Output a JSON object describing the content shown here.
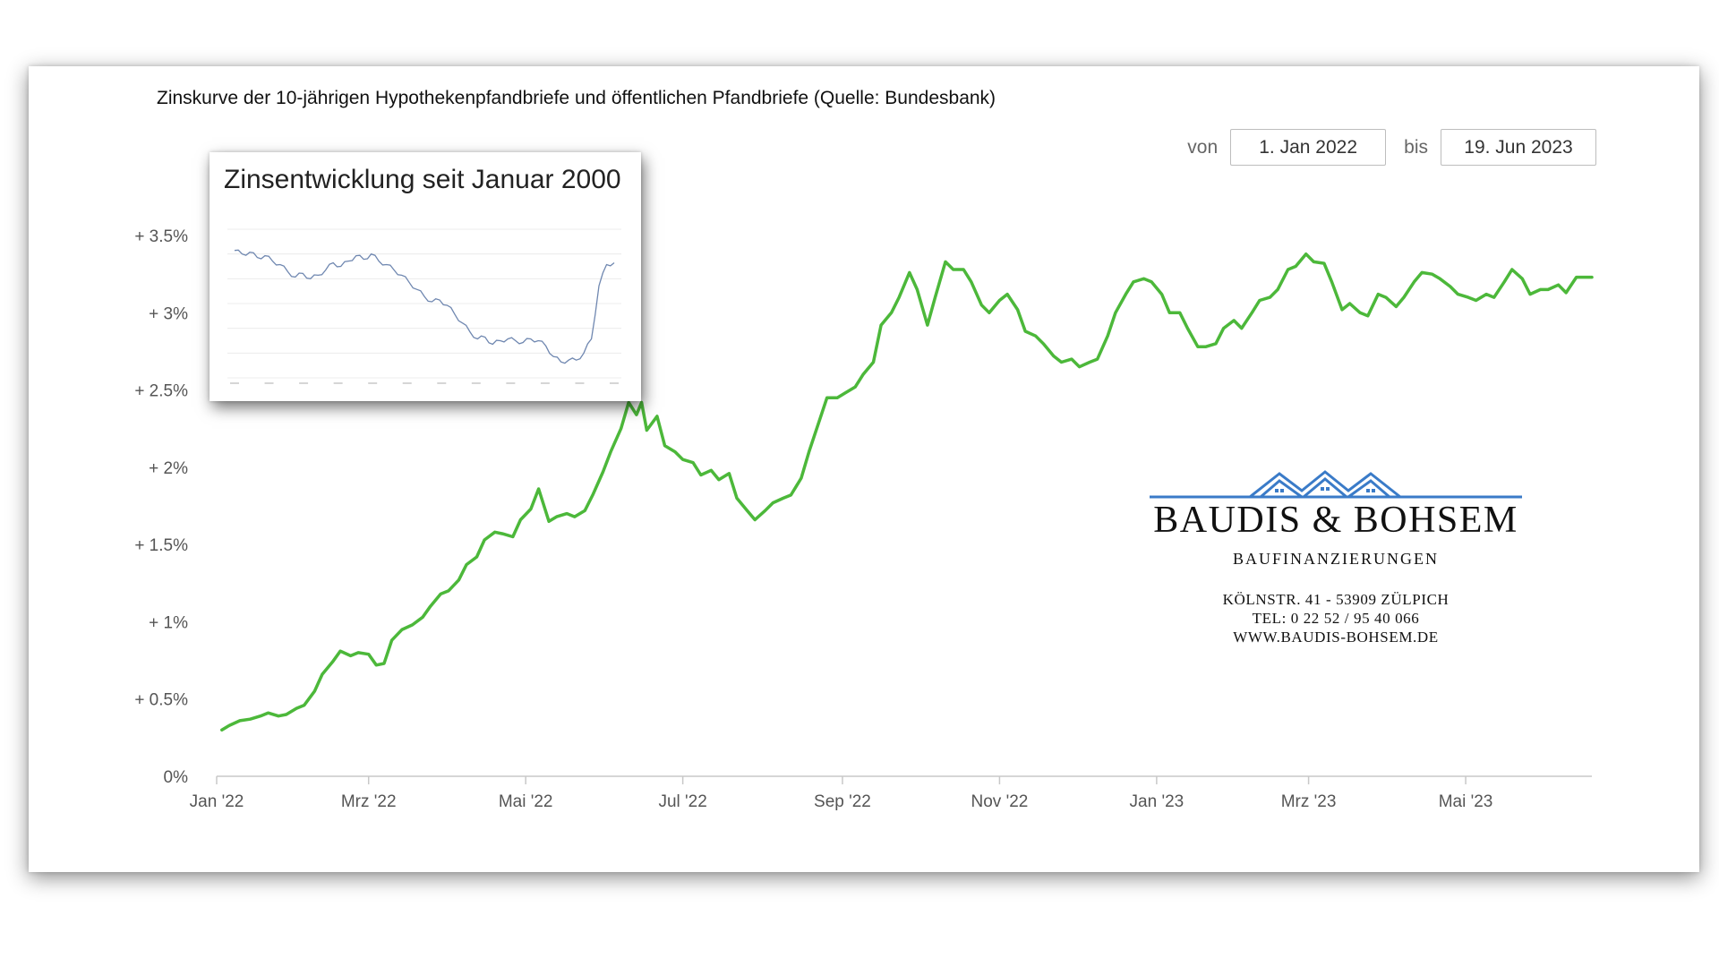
{
  "page": {
    "title": "Zinskurve der 10-jährigen Hypothekenpfandbriefe und öffentlichen Pfandbriefe (Quelle: Bundesbank)"
  },
  "range": {
    "from_label": "von",
    "from_value": "1. Jan 2022",
    "to_label": "bis",
    "to_value": "19. Jun 2023"
  },
  "inset": {
    "title": "Zinsentwicklung seit Januar 2000",
    "series": [
      3.6,
      3.5,
      3.55,
      3.4,
      3.45,
      3.3,
      3.2,
      3.0,
      2.85,
      2.95,
      2.8,
      2.9,
      3.05,
      3.25,
      3.15,
      3.3,
      3.45,
      3.35,
      3.5,
      3.3,
      3.2,
      3.05,
      2.9,
      2.7,
      2.5,
      2.3,
      2.15,
      2.2,
      2.05,
      1.8,
      1.55,
      1.3,
      1.1,
      1.15,
      0.95,
      1.05,
      1.1,
      1.05,
      1.0,
      1.1,
      1.05,
      0.9,
      0.6,
      0.45,
      0.5,
      0.5,
      0.7,
      1.1,
      2.6,
      3.2,
      3.25
    ],
    "ylim": [
      0,
      4.2
    ],
    "color": "#6f87b0"
  },
  "logo": {
    "name": "BAUDIS & BOHSEM",
    "tagline": "BAUFINANZIERUNGEN",
    "address": "KÖLNSTR. 41 - 53909 ZÜLPICH",
    "phone": "TEL: 0 22 52 / 95 40 066",
    "web": "WWW.BAUDIS-BOHSEM.DE",
    "icon": "house-roofs-icon",
    "color": "#3a7bc8"
  },
  "chart_data": {
    "type": "line",
    "title": "Zinskurve der 10-jährigen Hypothekenpfandbriefe und öffentlichen Pfandbriefe (Quelle: Bundesbank)",
    "xlabel": "",
    "ylabel": "",
    "ylim": [
      0,
      3.9
    ],
    "xlim": [
      "2022-01-01",
      "2023-06-19"
    ],
    "y_ticks": [
      {
        "value": 0,
        "label": "0%"
      },
      {
        "value": 0.5,
        "label": "+ 0.5%"
      },
      {
        "value": 1,
        "label": "+ 1%"
      },
      {
        "value": 1.5,
        "label": "+ 1.5%"
      },
      {
        "value": 2,
        "label": "+ 2%"
      },
      {
        "value": 2.5,
        "label": "+ 2.5%"
      },
      {
        "value": 3,
        "label": "+ 3%"
      },
      {
        "value": 3.5,
        "label": "+ 3.5%"
      }
    ],
    "x_ticks": [
      {
        "date": "2022-01-01",
        "label": "Jan '22"
      },
      {
        "date": "2022-03-01",
        "label": "Mrz '22"
      },
      {
        "date": "2022-05-01",
        "label": "Mai '22"
      },
      {
        "date": "2022-07-01",
        "label": "Jul '22"
      },
      {
        "date": "2022-09-01",
        "label": "Sep '22"
      },
      {
        "date": "2022-11-01",
        "label": "Nov '22"
      },
      {
        "date": "2023-01-01",
        "label": "Jan '23"
      },
      {
        "date": "2023-03-01",
        "label": "Mrz '23"
      },
      {
        "date": "2023-05-01",
        "label": "Mai '23"
      }
    ],
    "grid": false,
    "legend": "none",
    "series": [
      {
        "color": "#4cb83a",
        "points": [
          [
            "2022-01-03",
            0.3
          ],
          [
            "2022-01-06",
            0.33
          ],
          [
            "2022-01-10",
            0.36
          ],
          [
            "2022-01-14",
            0.37
          ],
          [
            "2022-01-18",
            0.39
          ],
          [
            "2022-01-21",
            0.41
          ],
          [
            "2022-01-25",
            0.39
          ],
          [
            "2022-01-28",
            0.4
          ],
          [
            "2022-02-01",
            0.44
          ],
          [
            "2022-02-04",
            0.46
          ],
          [
            "2022-02-08",
            0.55
          ],
          [
            "2022-02-11",
            0.66
          ],
          [
            "2022-02-15",
            0.74
          ],
          [
            "2022-02-18",
            0.81
          ],
          [
            "2022-02-22",
            0.78
          ],
          [
            "2022-02-25",
            0.8
          ],
          [
            "2022-03-01",
            0.79
          ],
          [
            "2022-03-04",
            0.72
          ],
          [
            "2022-03-07",
            0.73
          ],
          [
            "2022-03-10",
            0.88
          ],
          [
            "2022-03-14",
            0.95
          ],
          [
            "2022-03-18",
            0.98
          ],
          [
            "2022-03-22",
            1.03
          ],
          [
            "2022-03-25",
            1.1
          ],
          [
            "2022-03-29",
            1.18
          ],
          [
            "2022-04-01",
            1.2
          ],
          [
            "2022-04-05",
            1.27
          ],
          [
            "2022-04-08",
            1.37
          ],
          [
            "2022-04-12",
            1.42
          ],
          [
            "2022-04-15",
            1.53
          ],
          [
            "2022-04-19",
            1.58
          ],
          [
            "2022-04-22",
            1.57
          ],
          [
            "2022-04-26",
            1.55
          ],
          [
            "2022-04-29",
            1.66
          ],
          [
            "2022-05-03",
            1.73
          ],
          [
            "2022-05-06",
            1.86
          ],
          [
            "2022-05-10",
            1.65
          ],
          [
            "2022-05-13",
            1.68
          ],
          [
            "2022-05-17",
            1.7
          ],
          [
            "2022-05-20",
            1.68
          ],
          [
            "2022-05-24",
            1.72
          ],
          [
            "2022-05-27",
            1.82
          ],
          [
            "2022-05-31",
            1.97
          ],
          [
            "2022-06-03",
            2.1
          ],
          [
            "2022-06-07",
            2.25
          ],
          [
            "2022-06-10",
            2.42
          ],
          [
            "2022-06-13",
            2.34
          ],
          [
            "2022-06-15",
            2.42
          ],
          [
            "2022-06-17",
            2.24
          ],
          [
            "2022-06-21",
            2.33
          ],
          [
            "2022-06-24",
            2.14
          ],
          [
            "2022-06-28",
            2.1
          ],
          [
            "2022-07-01",
            2.05
          ],
          [
            "2022-07-05",
            2.03
          ],
          [
            "2022-07-08",
            1.95
          ],
          [
            "2022-07-12",
            1.98
          ],
          [
            "2022-07-15",
            1.92
          ],
          [
            "2022-07-19",
            1.96
          ],
          [
            "2022-07-22",
            1.8
          ],
          [
            "2022-07-26",
            1.72
          ],
          [
            "2022-07-29",
            1.66
          ],
          [
            "2022-08-02",
            1.72
          ],
          [
            "2022-08-05",
            1.77
          ],
          [
            "2022-08-09",
            1.8
          ],
          [
            "2022-08-12",
            1.82
          ],
          [
            "2022-08-16",
            1.93
          ],
          [
            "2022-08-19",
            2.1
          ],
          [
            "2022-08-23",
            2.3
          ],
          [
            "2022-08-26",
            2.45
          ],
          [
            "2022-08-30",
            2.45
          ],
          [
            "2022-09-02",
            2.48
          ],
          [
            "2022-09-06",
            2.52
          ],
          [
            "2022-09-09",
            2.6
          ],
          [
            "2022-09-13",
            2.68
          ],
          [
            "2022-09-16",
            2.92
          ],
          [
            "2022-09-20",
            3.0
          ],
          [
            "2022-09-23",
            3.1
          ],
          [
            "2022-09-27",
            3.26
          ],
          [
            "2022-09-30",
            3.15
          ],
          [
            "2022-10-04",
            2.92
          ],
          [
            "2022-10-07",
            3.1
          ],
          [
            "2022-10-11",
            3.33
          ],
          [
            "2022-10-14",
            3.28
          ],
          [
            "2022-10-18",
            3.28
          ],
          [
            "2022-10-21",
            3.2
          ],
          [
            "2022-10-25",
            3.05
          ],
          [
            "2022-10-28",
            3.0
          ],
          [
            "2022-11-01",
            3.08
          ],
          [
            "2022-11-04",
            3.12
          ],
          [
            "2022-11-08",
            3.02
          ],
          [
            "2022-11-11",
            2.88
          ],
          [
            "2022-11-15",
            2.85
          ],
          [
            "2022-11-18",
            2.8
          ],
          [
            "2022-11-22",
            2.72
          ],
          [
            "2022-11-25",
            2.68
          ],
          [
            "2022-11-29",
            2.7
          ],
          [
            "2022-12-02",
            2.65
          ],
          [
            "2022-12-06",
            2.68
          ],
          [
            "2022-12-09",
            2.7
          ],
          [
            "2022-12-13",
            2.85
          ],
          [
            "2022-12-16",
            3.0
          ],
          [
            "2022-12-20",
            3.12
          ],
          [
            "2022-12-23",
            3.2
          ],
          [
            "2022-12-27",
            3.22
          ],
          [
            "2022-12-30",
            3.2
          ],
          [
            "2023-01-03",
            3.12
          ],
          [
            "2023-01-06",
            3.0
          ],
          [
            "2023-01-10",
            3.0
          ],
          [
            "2023-01-13",
            2.9
          ],
          [
            "2023-01-17",
            2.78
          ],
          [
            "2023-01-20",
            2.78
          ],
          [
            "2023-01-24",
            2.8
          ],
          [
            "2023-01-27",
            2.9
          ],
          [
            "2023-01-31",
            2.95
          ],
          [
            "2023-02-03",
            2.9
          ],
          [
            "2023-02-07",
            3.0
          ],
          [
            "2023-02-10",
            3.08
          ],
          [
            "2023-02-14",
            3.1
          ],
          [
            "2023-02-17",
            3.15
          ],
          [
            "2023-02-21",
            3.28
          ],
          [
            "2023-02-24",
            3.3
          ],
          [
            "2023-02-28",
            3.38
          ],
          [
            "2023-03-03",
            3.33
          ],
          [
            "2023-03-07",
            3.32
          ],
          [
            "2023-03-10",
            3.2
          ],
          [
            "2023-03-14",
            3.02
          ],
          [
            "2023-03-17",
            3.06
          ],
          [
            "2023-03-21",
            3.0
          ],
          [
            "2023-03-24",
            2.98
          ],
          [
            "2023-03-28",
            3.12
          ],
          [
            "2023-03-31",
            3.1
          ],
          [
            "2023-04-04",
            3.04
          ],
          [
            "2023-04-07",
            3.1
          ],
          [
            "2023-04-11",
            3.2
          ],
          [
            "2023-04-14",
            3.26
          ],
          [
            "2023-04-18",
            3.25
          ],
          [
            "2023-04-21",
            3.22
          ],
          [
            "2023-04-25",
            3.17
          ],
          [
            "2023-04-28",
            3.12
          ],
          [
            "2023-05-02",
            3.1
          ],
          [
            "2023-05-05",
            3.08
          ],
          [
            "2023-05-09",
            3.12
          ],
          [
            "2023-05-12",
            3.1
          ],
          [
            "2023-05-16",
            3.2
          ],
          [
            "2023-05-19",
            3.28
          ],
          [
            "2023-05-23",
            3.22
          ],
          [
            "2023-05-26",
            3.12
          ],
          [
            "2023-05-30",
            3.15
          ],
          [
            "2023-06-02",
            3.15
          ],
          [
            "2023-06-06",
            3.18
          ],
          [
            "2023-06-09",
            3.13
          ],
          [
            "2023-06-13",
            3.23
          ],
          [
            "2023-06-19",
            3.23
          ]
        ]
      }
    ]
  }
}
